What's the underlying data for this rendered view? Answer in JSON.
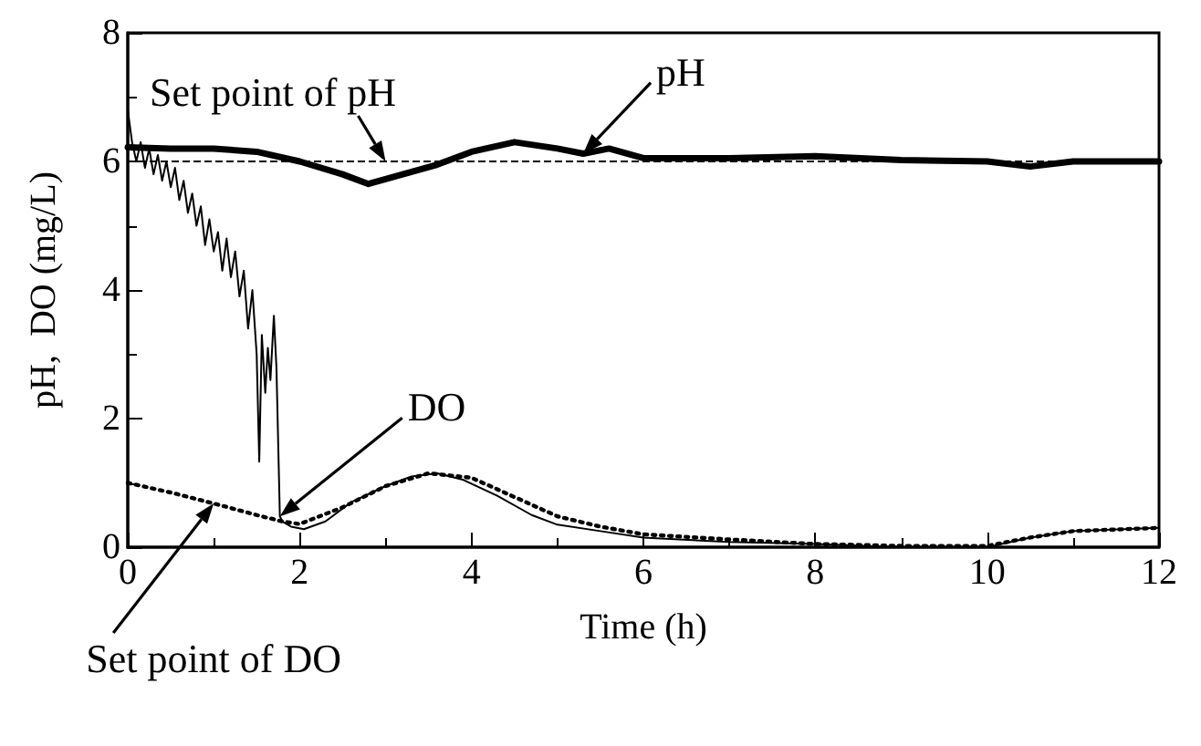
{
  "chart_data": {
    "type": "line",
    "xlabel": "Time (h)",
    "ylabel": "pH,  DO (mg/L)",
    "xlim": [
      0,
      12
    ],
    "xticks": [
      0,
      2,
      4,
      6,
      8,
      10,
      12
    ],
    "ylim": [
      0,
      8
    ],
    "yticks": [
      0,
      2,
      4,
      6,
      8
    ],
    "grid": false,
    "legend": false,
    "marker": "none",
    "ref_lines": [
      {
        "axis": "y",
        "value": 6,
        "label": "Set point of pH",
        "line_style": "dashed",
        "color": "#000000"
      }
    ],
    "series": [
      {
        "name": "pH",
        "color": "#000000",
        "line_style": "solid",
        "x": [
          0,
          0.5,
          1,
          1.5,
          2,
          2.5,
          2.8,
          3.2,
          3.6,
          4,
          4.5,
          5,
          5.3,
          5.6,
          6,
          7,
          8,
          9,
          10,
          10.5,
          11,
          12
        ],
        "values": [
          6.22,
          6.2,
          6.2,
          6.15,
          6.0,
          5.8,
          5.65,
          5.8,
          5.95,
          6.15,
          6.3,
          6.2,
          6.12,
          6.2,
          6.05,
          6.05,
          6.08,
          6.02,
          6.0,
          5.92,
          6.0,
          6.0
        ]
      },
      {
        "name": "DO",
        "color": "#000000",
        "line_style": "solid",
        "x": [
          0,
          0.05,
          0.1,
          0.15,
          0.2,
          0.25,
          0.3,
          0.35,
          0.4,
          0.45,
          0.5,
          0.55,
          0.6,
          0.65,
          0.7,
          0.75,
          0.8,
          0.85,
          0.9,
          0.95,
          1.0,
          1.05,
          1.1,
          1.15,
          1.2,
          1.25,
          1.3,
          1.35,
          1.4,
          1.45,
          1.5,
          1.53,
          1.56,
          1.6,
          1.63,
          1.66,
          1.7,
          1.73,
          1.77,
          1.8,
          1.9,
          2.05,
          2.3,
          2.6,
          3.0,
          3.3,
          3.6,
          3.9,
          4.3,
          4.7,
          5.0,
          5.5,
          6.0,
          7.0,
          8.0,
          9.0,
          10.0,
          10.5,
          11.0,
          12.0
        ],
        "values": [
          6.8,
          6.3,
          6.0,
          6.3,
          5.9,
          6.2,
          5.8,
          6.1,
          5.7,
          6.0,
          5.6,
          5.9,
          5.4,
          5.7,
          5.2,
          5.5,
          5.0,
          5.3,
          4.7,
          5.1,
          4.6,
          4.9,
          4.3,
          4.8,
          4.2,
          4.6,
          3.9,
          4.3,
          3.4,
          4.0,
          3.0,
          1.33,
          3.3,
          2.4,
          3.1,
          2.6,
          3.6,
          2.8,
          0.48,
          0.4,
          0.32,
          0.28,
          0.4,
          0.7,
          0.95,
          1.1,
          1.15,
          1.05,
          0.8,
          0.5,
          0.35,
          0.25,
          0.15,
          0.08,
          0.05,
          0.0,
          0.0,
          0.15,
          0.25,
          0.3
        ]
      },
      {
        "name": "Set point of DO",
        "color": "#000000",
        "line_style": "dotted",
        "x": [
          0,
          0.5,
          1,
          1.5,
          1.8,
          2,
          2.5,
          3,
          3.5,
          4,
          4.5,
          5,
          5.5,
          6,
          7,
          8,
          9,
          10,
          10.5,
          11,
          12
        ],
        "values": [
          1.0,
          0.85,
          0.68,
          0.5,
          0.4,
          0.36,
          0.62,
          0.95,
          1.15,
          1.08,
          0.78,
          0.48,
          0.32,
          0.2,
          0.12,
          0.05,
          0.02,
          0.02,
          0.15,
          0.25,
          0.3
        ]
      }
    ]
  }
}
